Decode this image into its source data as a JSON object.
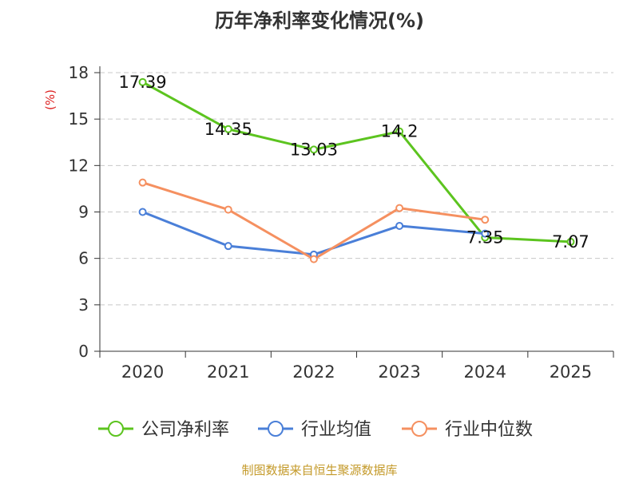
{
  "chart_data": {
    "type": "line",
    "title": "历年净利率变化情况(%)",
    "ylabel": "(%)",
    "categories": [
      "2020",
      "2021",
      "2022",
      "2023",
      "2024",
      "2025"
    ],
    "y_ticks": [
      0,
      3,
      6,
      9,
      12,
      15,
      18
    ],
    "ylim": [
      0,
      18
    ],
    "grid": true,
    "legend_position": "bottom",
    "series": [
      {
        "name": "公司净利率",
        "color": "#5cc41f",
        "values": [
          17.39,
          14.35,
          13.03,
          14.2,
          7.35,
          7.07
        ],
        "labels": [
          "17.39",
          "14.35",
          "13.03",
          "14.2",
          "7.35",
          "7.07"
        ]
      },
      {
        "name": "行业均值",
        "color": "#4a7fd8",
        "values": [
          9.0,
          6.8,
          6.25,
          8.1,
          7.6,
          null
        ]
      },
      {
        "name": "行业中位数",
        "color": "#f59060",
        "values": [
          10.9,
          9.15,
          5.95,
          9.25,
          8.5,
          null
        ]
      }
    ]
  },
  "footer": {
    "source": "制图数据来自恒生聚源数据库"
  }
}
